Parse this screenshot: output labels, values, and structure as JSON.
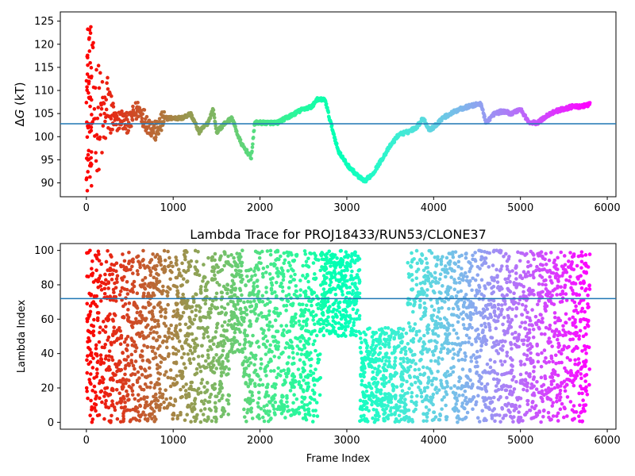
{
  "chart_data": [
    {
      "type": "scatter",
      "title": "",
      "xlabel": "",
      "ylabel_parts": {
        "delta": "Δ",
        "var": "G",
        "unit": " (kT)"
      },
      "xlim": [
        -300,
        6100
      ],
      "ylim": [
        87,
        127
      ],
      "xticks": [
        0,
        1000,
        2000,
        3000,
        4000,
        5000,
        6000
      ],
      "yticks": [
        90,
        95,
        100,
        105,
        110,
        115,
        120,
        125
      ],
      "hline": 102.8,
      "hline_color": "#1f77b4",
      "colormap": "rainbow",
      "series_trend": {
        "x": [
          0,
          30,
          60,
          100,
          150,
          200,
          250,
          300,
          350,
          400,
          450,
          500,
          550,
          600,
          700,
          800,
          900,
          1000,
          1100,
          1200,
          1300,
          1400,
          1460,
          1500,
          1600,
          1680,
          1750,
          1800,
          1900,
          1940,
          2000,
          2100,
          2200,
          2300,
          2400,
          2500,
          2600,
          2650,
          2750,
          2800,
          2900,
          3000,
          3100,
          3200,
          3300,
          3400,
          3500,
          3600,
          3700,
          3800,
          3880,
          3950,
          4000,
          4100,
          4200,
          4300,
          4400,
          4500,
          4550,
          4600,
          4700,
          4800,
          4900,
          5000,
          5050,
          5100,
          5200,
          5300,
          5400,
          5500,
          5600,
          5700,
          5800
        ],
        "y": [
          108,
          110,
          106,
          106,
          104,
          103,
          107,
          104,
          103,
          104,
          103,
          103,
          105,
          106,
          103,
          101,
          104,
          104,
          104,
          105,
          101,
          103,
          106,
          101,
          103,
          104,
          100,
          98,
          95.5,
          103,
          103,
          103,
          103,
          104,
          105,
          106,
          106.5,
          108,
          108,
          104,
          97,
          94,
          92,
          90.3,
          92,
          95,
          98,
          100.5,
          101,
          102,
          104,
          101.5,
          102,
          104,
          105,
          106,
          106.5,
          107,
          107,
          103,
          105,
          105.5,
          105,
          106,
          104.5,
          103,
          103,
          104.5,
          105.5,
          106,
          106.5,
          106.5,
          107
        ]
      },
      "early_scatter": {
        "x_range": [
          0,
          320
        ],
        "y_spread_start": 18,
        "y_spread_end": 4
      }
    },
    {
      "type": "scatter",
      "title": "Lambda Trace for PROJ18433/RUN53/CLONE37",
      "xlabel": "Frame Index",
      "ylabel": "Lambda Index",
      "xlim": [
        -300,
        6100
      ],
      "ylim": [
        -4,
        104
      ],
      "xticks": [
        0,
        1000,
        2000,
        3000,
        4000,
        5000,
        6000
      ],
      "yticks": [
        0,
        20,
        40,
        60,
        80,
        100
      ],
      "hline": 72,
      "hline_color": "#1f77b4",
      "colormap": "rainbow",
      "segments": [
        {
          "x": [
            0,
            60
          ],
          "y": [
            0,
            100
          ]
        },
        {
          "x": [
            60,
            700
          ],
          "y": [
            0,
            100
          ]
        },
        {
          "x": [
            700,
            1300
          ],
          "y": [
            0,
            100
          ]
        },
        {
          "x": [
            1300,
            1650
          ],
          "y": [
            0,
            100
          ]
        },
        {
          "x": [
            1650,
            1800
          ],
          "y": [
            40,
            100
          ]
        },
        {
          "x": [
            1800,
            1950
          ],
          "y": [
            0,
            90
          ]
        },
        {
          "x": [
            1950,
            2700
          ],
          "y": [
            0,
            100
          ]
        },
        {
          "x": [
            2700,
            3150
          ],
          "y": [
            50,
            100
          ]
        },
        {
          "x": [
            3150,
            3700
          ],
          "y": [
            0,
            55
          ]
        },
        {
          "x": [
            3700,
            4050
          ],
          "y": [
            0,
            100
          ]
        },
        {
          "x": [
            4050,
            4600
          ],
          "y": [
            0,
            100
          ]
        },
        {
          "x": [
            4600,
            5200
          ],
          "y": [
            0,
            100
          ]
        },
        {
          "x": [
            5200,
            5800
          ],
          "y": [
            0,
            100
          ]
        }
      ]
    }
  ]
}
